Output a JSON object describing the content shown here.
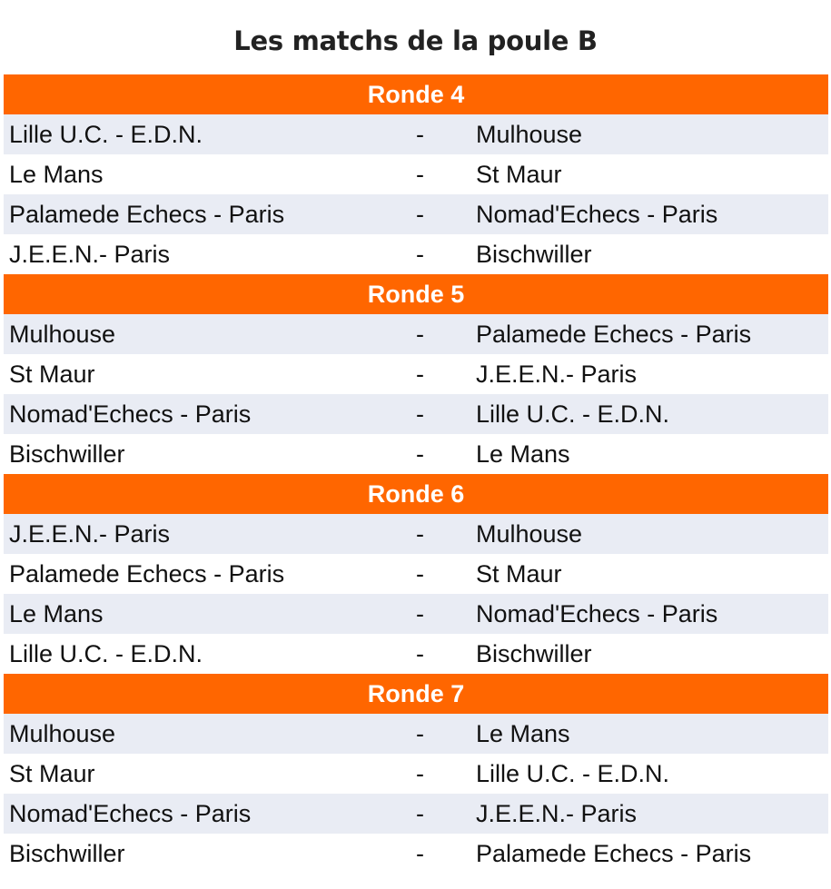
{
  "title": "Les matchs de la poule B",
  "rounds": [
    {
      "label": "Ronde 4",
      "matches": [
        {
          "home": "Lille U.C. - E.D.N.",
          "sep": "-",
          "away": "Mulhouse"
        },
        {
          "home": "Le Mans",
          "sep": "-",
          "away": "St Maur"
        },
        {
          "home": "Palamede Echecs - Paris",
          "sep": "-",
          "away": "Nomad'Echecs - Paris"
        },
        {
          "home": "J.E.E.N.- Paris",
          "sep": "-",
          "away": "Bischwiller"
        }
      ]
    },
    {
      "label": "Ronde 5",
      "matches": [
        {
          "home": "Mulhouse",
          "sep": "-",
          "away": "Palamede Echecs - Paris"
        },
        {
          "home": "St Maur",
          "sep": "-",
          "away": "J.E.E.N.- Paris"
        },
        {
          "home": "Nomad'Echecs - Paris",
          "sep": "-",
          "away": "Lille U.C. - E.D.N."
        },
        {
          "home": "Bischwiller",
          "sep": "-",
          "away": "Le Mans"
        }
      ]
    },
    {
      "label": "Ronde 6",
      "matches": [
        {
          "home": "J.E.E.N.- Paris",
          "sep": "-",
          "away": "Mulhouse"
        },
        {
          "home": "Palamede Echecs - Paris",
          "sep": "-",
          "away": "St Maur"
        },
        {
          "home": "Le Mans",
          "sep": "-",
          "away": "Nomad'Echecs - Paris"
        },
        {
          "home": "Lille U.C. - E.D.N.",
          "sep": "-",
          "away": "Bischwiller"
        }
      ]
    },
    {
      "label": "Ronde 7",
      "matches": [
        {
          "home": "Mulhouse",
          "sep": "-",
          "away": "Le Mans"
        },
        {
          "home": "St Maur",
          "sep": "-",
          "away": "Lille U.C. - E.D.N."
        },
        {
          "home": "Nomad'Echecs - Paris",
          "sep": "-",
          "away": "J.E.E.N.- Paris"
        },
        {
          "home": "Bischwiller",
          "sep": "-",
          "away": "Palamede Echecs - Paris"
        }
      ]
    }
  ],
  "colors": {
    "header": "#ff6600",
    "row_alt": "#e9ecf4"
  }
}
